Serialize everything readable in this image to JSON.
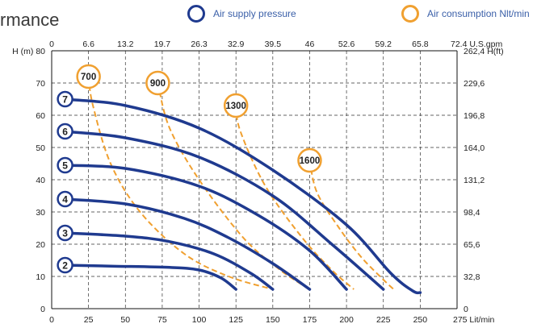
{
  "title": "rmance",
  "legend": [
    {
      "label": "Air supply pressure",
      "color": "#1f3a8f"
    },
    {
      "label": "Air consumption Nlt/min",
      "color": "#f0a030"
    }
  ],
  "chart_data": {
    "type": "line",
    "bottom_axis": {
      "ticks": [
        "0",
        "25",
        "50",
        "75",
        "100",
        "125",
        "150",
        "175",
        "200",
        "225",
        "250",
        "275 Lit/min"
      ],
      "range": [
        0,
        275
      ],
      "unit": "Lit/min"
    },
    "top_axis": {
      "ticks": [
        "0",
        "6.6",
        "13.2",
        "19.7",
        "26.3",
        "32.9",
        "39.5",
        "46",
        "52.6",
        "59.2",
        "65.8",
        "72.4 U.S.gpm"
      ],
      "unit": "U.S.gpm"
    },
    "left_axis": {
      "ticks": [
        "0",
        "10",
        "20",
        "30",
        "40",
        "50",
        "60",
        "70",
        "H (m) 80"
      ],
      "range": [
        0,
        80
      ],
      "unit": "H (m)"
    },
    "right_axis": {
      "ticks": [
        "0",
        "32,8",
        "65,6",
        "98,4",
        "131,2",
        "164,0",
        "196,8",
        "229,6",
        "262,4 H(ft)"
      ],
      "unit": "H(ft)"
    },
    "grid": "dashed",
    "pressure_series": [
      {
        "name": "2",
        "color": "#1f3a8f",
        "points": [
          [
            8,
            13.5
          ],
          [
            40,
            13.2
          ],
          [
            80,
            12.8
          ],
          [
            100,
            12
          ],
          [
            115,
            9.5
          ],
          [
            125,
            6
          ]
        ]
      },
      {
        "name": "3",
        "color": "#1f3a8f",
        "points": [
          [
            8,
            23.5
          ],
          [
            50,
            22.5
          ],
          [
            80,
            20.8
          ],
          [
            110,
            17
          ],
          [
            135,
            11
          ],
          [
            150,
            6
          ]
        ]
      },
      {
        "name": "4",
        "color": "#1f3a8f",
        "points": [
          [
            8,
            34
          ],
          [
            50,
            32.5
          ],
          [
            90,
            28
          ],
          [
            120,
            22
          ],
          [
            150,
            14
          ],
          [
            175,
            6
          ]
        ]
      },
      {
        "name": "5",
        "color": "#1f3a8f",
        "points": [
          [
            8,
            44.5
          ],
          [
            50,
            43.5
          ],
          [
            100,
            38
          ],
          [
            140,
            29
          ],
          [
            175,
            18
          ],
          [
            200,
            6
          ]
        ]
      },
      {
        "name": "6",
        "color": "#1f3a8f",
        "points": [
          [
            8,
            55
          ],
          [
            50,
            53
          ],
          [
            100,
            47
          ],
          [
            150,
            35
          ],
          [
            190,
            20
          ],
          [
            225,
            6
          ]
        ]
      },
      {
        "name": "7",
        "color": "#1f3a8f",
        "points": [
          [
            8,
            65
          ],
          [
            50,
            63
          ],
          [
            100,
            56
          ],
          [
            150,
            43
          ],
          [
            200,
            26
          ],
          [
            230,
            11
          ],
          [
            245,
            5.5
          ],
          [
            250,
            5
          ]
        ]
      }
    ],
    "air_series": [
      {
        "name": "700",
        "color": "#f0a030",
        "points": [
          [
            25,
            72
          ],
          [
            28,
            63
          ],
          [
            40,
            45
          ],
          [
            60,
            30
          ],
          [
            90,
            17
          ],
          [
            120,
            10
          ],
          [
            150,
            6
          ]
        ]
      },
      {
        "name": "900",
        "color": "#f0a030",
        "points": [
          [
            72,
            70
          ],
          [
            80,
            56
          ],
          [
            100,
            40
          ],
          [
            130,
            22
          ],
          [
            155,
            12
          ],
          [
            175,
            6
          ]
        ]
      },
      {
        "name": "1300",
        "color": "#f0a030",
        "points": [
          [
            125,
            63
          ],
          [
            128,
            55
          ],
          [
            145,
            38
          ],
          [
            170,
            22
          ],
          [
            190,
            12
          ],
          [
            205,
            6
          ]
        ]
      },
      {
        "name": "1600",
        "color": "#f0a030",
        "points": [
          [
            175,
            46
          ],
          [
            180,
            36
          ],
          [
            195,
            25
          ],
          [
            210,
            16
          ],
          [
            225,
            9
          ],
          [
            232,
            6
          ]
        ]
      }
    ],
    "pressure_labels": [
      "2",
      "3",
      "4",
      "5",
      "6",
      "7"
    ],
    "air_labels": [
      "700",
      "900",
      "1300",
      "1600"
    ]
  }
}
